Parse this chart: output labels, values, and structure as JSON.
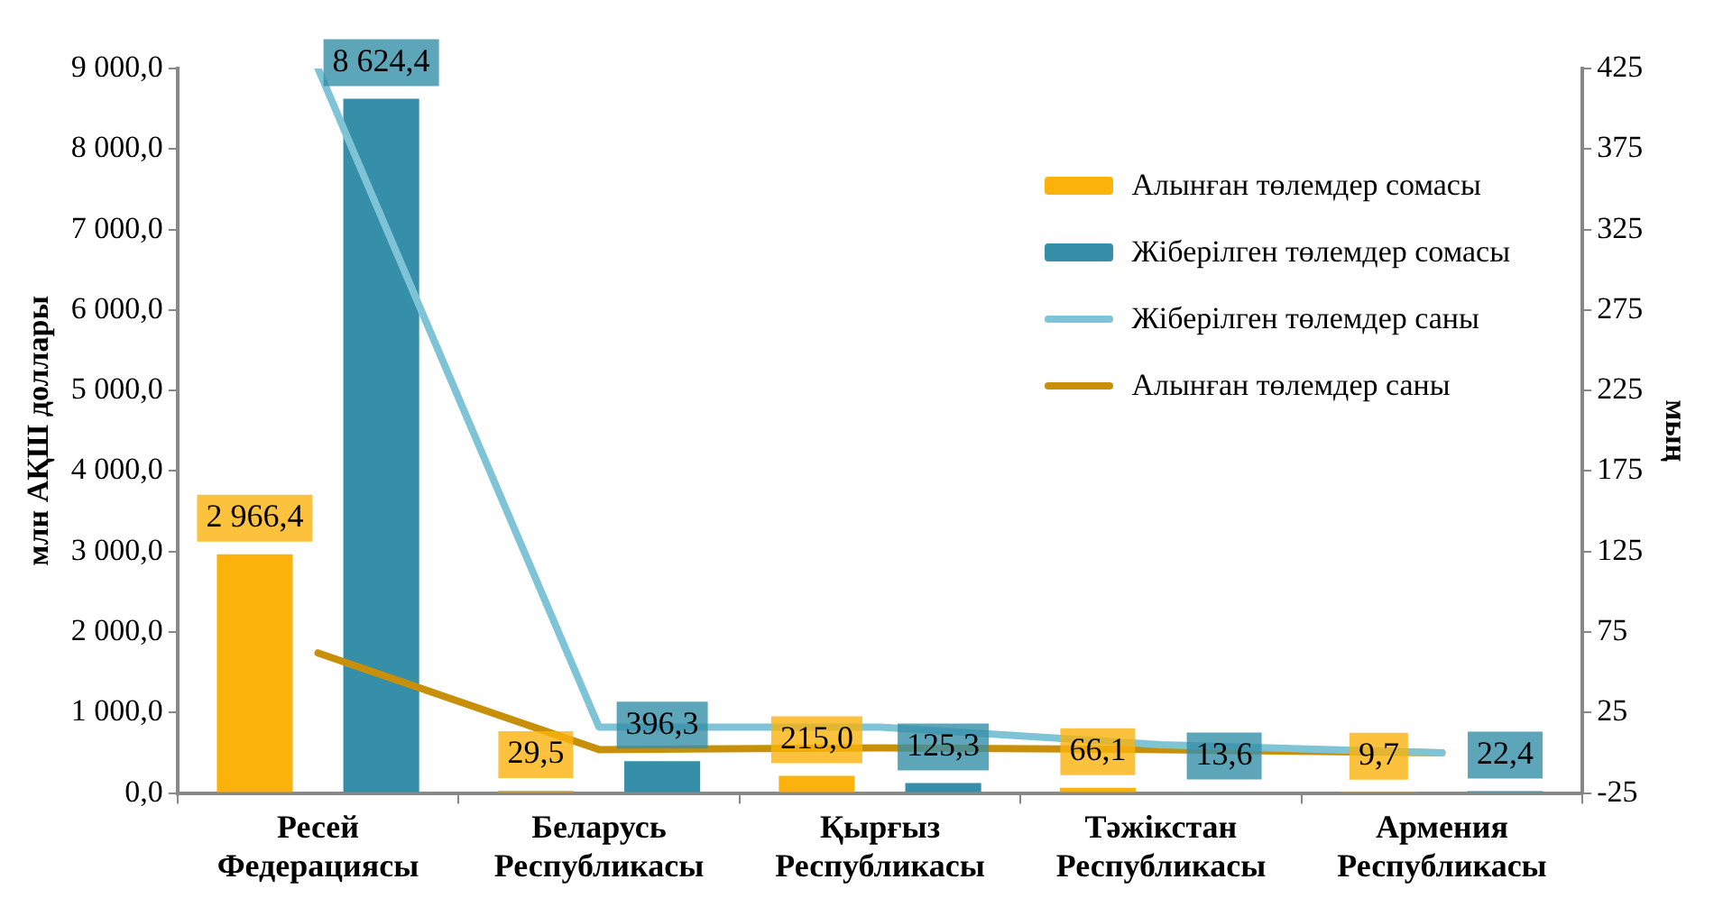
{
  "chart_data": {
    "type": "bar",
    "ylabel": "млн АҚШ доллары",
    "y2label": "мың",
    "categories": [
      "Ресей Федерациясы",
      "Беларусь Республикасы",
      "Қырғыз Республикасы",
      "Тәжікстан Республикасы",
      "Армения Республикасы"
    ],
    "series": [
      {
        "name": "Алынған төлемдер сомасы",
        "color": "#fbb30c",
        "values": [
          2966.4,
          29.5,
          215.0,
          66.1,
          9.7
        ],
        "value_labels": [
          "2 966,4",
          "29,5",
          "215,0",
          "66,1",
          "9,7"
        ]
      },
      {
        "name": "Жіберілген төлемдер сомасы",
        "color": "#358fa8",
        "values": [
          8624.4,
          396.3,
          125.3,
          13.6,
          22.4
        ],
        "value_labels": [
          "8 624,4",
          "396,3",
          "125,3",
          "13,6",
          "22,4"
        ]
      },
      {
        "name": "Жіберілген төлемдер саны",
        "type": "line",
        "axis": "y2",
        "color": "#7ec4d6",
        "values": [
          425,
          16,
          16,
          5,
          0
        ]
      },
      {
        "name": "Алынған төлемдер саны",
        "type": "line",
        "axis": "y2",
        "color": "#c8900a",
        "values": [
          62,
          2,
          3,
          2,
          0
        ]
      }
    ],
    "ylim": [
      0,
      9000
    ],
    "yticks": [
      {
        "value": 0,
        "label": "0,0"
      },
      {
        "value": 1000,
        "label": "1 000,0"
      },
      {
        "value": 2000,
        "label": "2 000,0"
      },
      {
        "value": 3000,
        "label": "3 000,0"
      },
      {
        "value": 4000,
        "label": "4 000,0"
      },
      {
        "value": 5000,
        "label": "5 000,0"
      },
      {
        "value": 6000,
        "label": "6 000,0"
      },
      {
        "value": 7000,
        "label": "7 000,0"
      },
      {
        "value": 8000,
        "label": "8 000,0"
      },
      {
        "value": 9000,
        "label": "9 000,0"
      }
    ],
    "y2lim": [
      -25,
      425
    ],
    "y2ticks": [
      -25,
      25,
      75,
      125,
      175,
      225,
      275,
      325,
      375,
      425
    ],
    "grid": false,
    "legend": "top right",
    "marker": "none",
    "line_style": "solid"
  }
}
